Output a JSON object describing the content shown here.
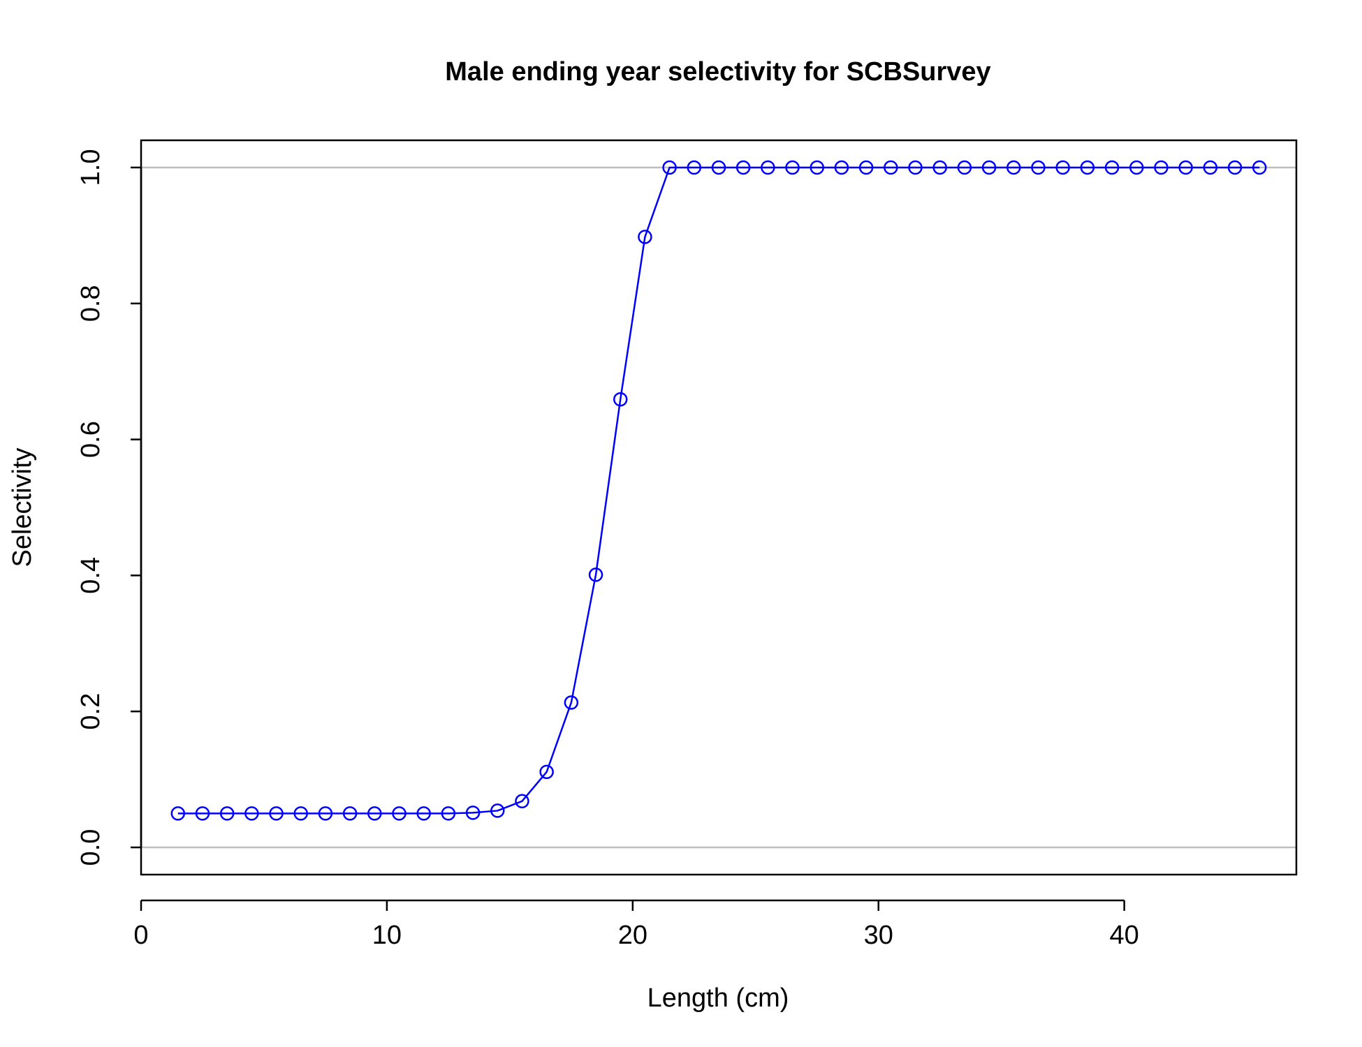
{
  "chart_data": {
    "type": "line",
    "title": "Male ending year selectivity for SCBSurvey",
    "xlabel": "Length (cm)",
    "ylabel": "Selectivity",
    "xlim": [
      0,
      47
    ],
    "ylim": [
      -0.04,
      1.04
    ],
    "x_ticks": [
      "0",
      "10",
      "20",
      "30",
      "40"
    ],
    "x_tick_values": [
      0,
      10,
      20,
      30,
      40
    ],
    "y_ticks": [
      "0.0",
      "0.2",
      "0.4",
      "0.6",
      "0.8",
      "1.0"
    ],
    "y_tick_values": [
      0,
      0.2,
      0.4,
      0.6,
      0.8,
      1.0
    ],
    "reference_lines": [
      0,
      1
    ],
    "reference_line_color": "#bebebe",
    "grid": false,
    "legend": "none",
    "series": [
      {
        "color": "#0000ff",
        "marker": "open-circle",
        "x": [
          1.5,
          2.5,
          3.5,
          4.5,
          5.5,
          6.5,
          7.5,
          8.5,
          9.5,
          10.5,
          11.5,
          12.5,
          13.5,
          14.5,
          15.5,
          16.5,
          17.5,
          18.5,
          19.5,
          20.5,
          21.5,
          22.5,
          23.5,
          24.5,
          25.5,
          26.5,
          27.5,
          28.5,
          29.5,
          30.5,
          31.5,
          32.5,
          33.5,
          34.5,
          35.5,
          36.5,
          37.5,
          38.5,
          39.5,
          40.5,
          41.5,
          42.5,
          43.5,
          44.5,
          45.5
        ],
        "y": [
          0.05,
          0.05,
          0.05,
          0.05,
          0.05,
          0.05,
          0.05,
          0.05,
          0.05,
          0.05,
          0.05,
          0.05,
          0.051,
          0.054,
          0.068,
          0.111,
          0.213,
          0.401,
          0.659,
          0.898,
          1.0,
          1.0,
          1.0,
          1.0,
          1.0,
          1.0,
          1.0,
          1.0,
          1.0,
          1.0,
          1.0,
          1.0,
          1.0,
          1.0,
          1.0,
          1.0,
          1.0,
          1.0,
          1.0,
          1.0,
          1.0,
          1.0,
          1.0,
          1.0,
          1.0
        ]
      }
    ]
  }
}
